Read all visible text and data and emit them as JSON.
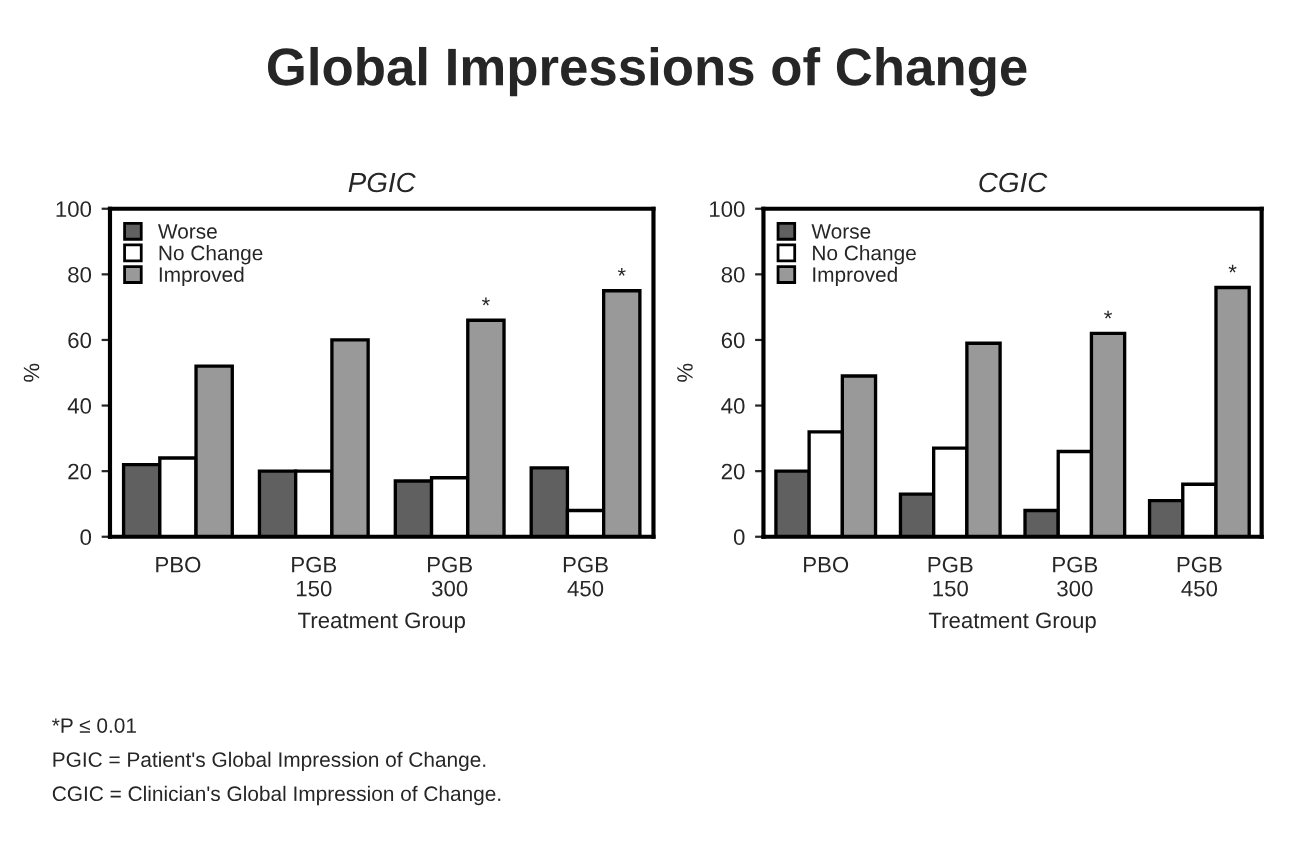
{
  "chart_data": [
    {
      "type": "bar",
      "title": "Global Impressions of Change",
      "subtitle": "PGIC",
      "xlabel": "Treatment Group",
      "ylabel": "%",
      "categories": [
        "PBO",
        "PGB\n150",
        "PGB\n300",
        "PGB\n450"
      ],
      "series": [
        {
          "name": "Worse",
          "color": "#606060",
          "values": [
            22,
            20,
            17,
            21
          ]
        },
        {
          "name": "No Change",
          "color": "#ffffff",
          "values": [
            24,
            20,
            18,
            8
          ]
        },
        {
          "name": "Improved",
          "color": "#999999",
          "values": [
            52,
            60,
            66,
            75
          ],
          "value_labels": [
            null,
            null,
            "*",
            "*"
          ]
        }
      ],
      "ylim": [
        0,
        100
      ],
      "yticks": [
        0,
        20,
        40,
        60,
        80,
        100
      ],
      "legend": "top left",
      "grid": false
    },
    {
      "type": "bar",
      "subtitle": "CGIC",
      "xlabel": "Treatment Group",
      "ylabel": "%",
      "categories": [
        "PBO",
        "PGB\n150",
        "PGB\n300",
        "PGB\n450"
      ],
      "series": [
        {
          "name": "Worse",
          "color": "#606060",
          "values": [
            20,
            13,
            8,
            11
          ]
        },
        {
          "name": "No Change",
          "color": "#ffffff",
          "values": [
            32,
            27,
            26,
            16
          ]
        },
        {
          "name": "Improved",
          "color": "#999999",
          "values": [
            49,
            59,
            62,
            76
          ],
          "value_labels": [
            null,
            null,
            "*",
            "*"
          ]
        }
      ],
      "ylim": [
        0,
        100
      ],
      "yticks": [
        0,
        20,
        40,
        60,
        80,
        100
      ],
      "legend": "top left",
      "grid": false,
      "annotations": [
        "*P ≤ 0.01",
        "PGIC = Patient's Global Impression of Change.",
        "CGIC = Clinician's Global Impression of Change."
      ]
    }
  ]
}
